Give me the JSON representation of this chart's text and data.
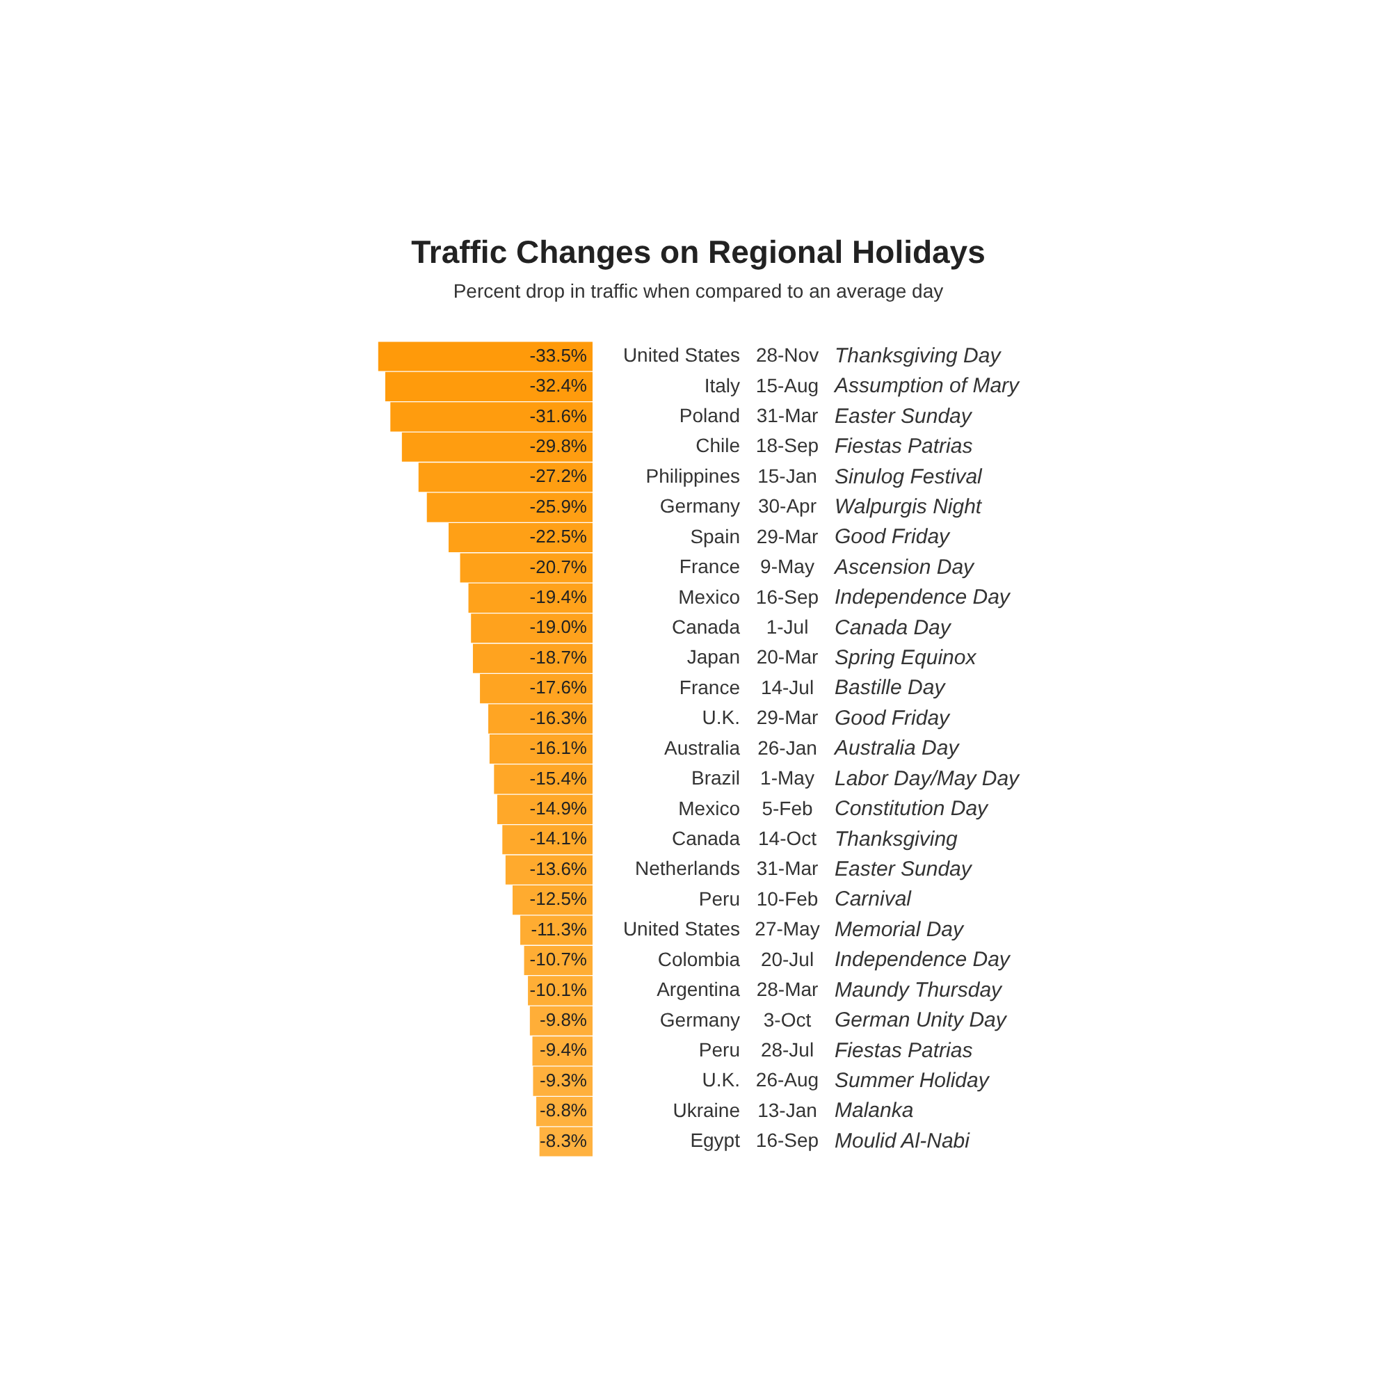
{
  "chart_data": {
    "type": "bar",
    "orientation": "horizontal",
    "title": "Traffic Changes on Regional Holidays",
    "subtitle": "Percent drop in traffic when compared to an average day",
    "categories": [
      "United States",
      "Italy",
      "Poland",
      "Chile",
      "Philippines",
      "Germany",
      "Spain",
      "France",
      "Mexico",
      "Canada",
      "Japan",
      "France",
      "U.K.",
      "Australia",
      "Brazil",
      "Mexico",
      "Canada",
      "Netherlands",
      "Peru",
      "United States",
      "Colombia",
      "Argentina",
      "Germany",
      "Peru",
      "U.K.",
      "Ukraine",
      "Egypt"
    ],
    "values": [
      -33.5,
      -32.4,
      -31.6,
      -29.8,
      -27.2,
      -25.9,
      -22.5,
      -20.7,
      -19.4,
      -19.0,
      -18.7,
      -17.6,
      -16.3,
      -16.1,
      -15.4,
      -14.9,
      -14.1,
      -13.6,
      -12.5,
      -11.3,
      -10.7,
      -10.1,
      -9.8,
      -9.4,
      -9.3,
      -8.8,
      -8.3
    ],
    "value_labels": [
      "-33.5%",
      "-32.4%",
      "-31.6%",
      "-29.8%",
      "-27.2%",
      "-25.9%",
      "-22.5%",
      "-20.7%",
      "-19.4%",
      "-19.0%",
      "-18.7%",
      "-17.6%",
      "-16.3%",
      "-16.1%",
      "-15.4%",
      "-14.9%",
      "-14.1%",
      "-13.6%",
      "-12.5%",
      "-11.3%",
      "-10.7%",
      "-10.1%",
      "-9.8%",
      "-9.4%",
      "-9.3%",
      "-8.8%",
      "-8.3%"
    ],
    "colors": [
      "#ff9a0a",
      "#ff9b0c",
      "#ff9c0e",
      "#ff9d10",
      "#ff9e12",
      "#ff9f14",
      "#ffa016",
      "#ffa118",
      "#ffa21b",
      "#ffa21d",
      "#ffa31f",
      "#ffa421",
      "#ffa523",
      "#ffa625",
      "#ffa727",
      "#ffa829",
      "#ffa92b",
      "#ffaa2d",
      "#ffab2f",
      "#ffac31",
      "#ffad34",
      "#ffae36",
      "#ffae38",
      "#ffaf3a",
      "#ffb03c",
      "#ffb13e",
      "#ffb240"
    ],
    "tick_labels": "y",
    "grid": false,
    "legend": false,
    "annotations": [
      "28-Nov",
      "Thanksgiving Day",
      "15-Aug",
      "Assumption of Mary",
      "31-Mar",
      "Easter Sunday",
      "18-Sep",
      "Fiestas Patrias",
      "15-Jan",
      "Sinulog Festival",
      "30-Apr",
      "Walpurgis Night",
      "29-Mar",
      "Good Friday",
      "9-May",
      "Ascension Day",
      "16-Sep",
      "Independence Day",
      "1-Jul",
      "Canada Day",
      "20-Mar",
      "Spring Equinox",
      "14-Jul",
      "Bastille Day",
      "29-Mar",
      "Good Friday",
      "26-Jan",
      "Australia Day",
      "1-May",
      "Labor Day/May Day",
      "5-Feb",
      "Constitution Day",
      "14-Oct",
      "Thanksgiving",
      "31-Mar",
      "Easter Sunday",
      "10-Feb",
      "Carnival",
      "27-May",
      "Memorial Day",
      "20-Jul",
      "Independence Day",
      "28-Mar",
      "Maundy Thursday",
      "3-Oct",
      "German Unity Day",
      "28-Jul",
      "Fiestas Patrias",
      "26-Aug",
      "Summer Holiday",
      "13-Jan",
      "Malanka",
      "16-Sep",
      "Moulid Al-Nabi"
    ]
  }
}
